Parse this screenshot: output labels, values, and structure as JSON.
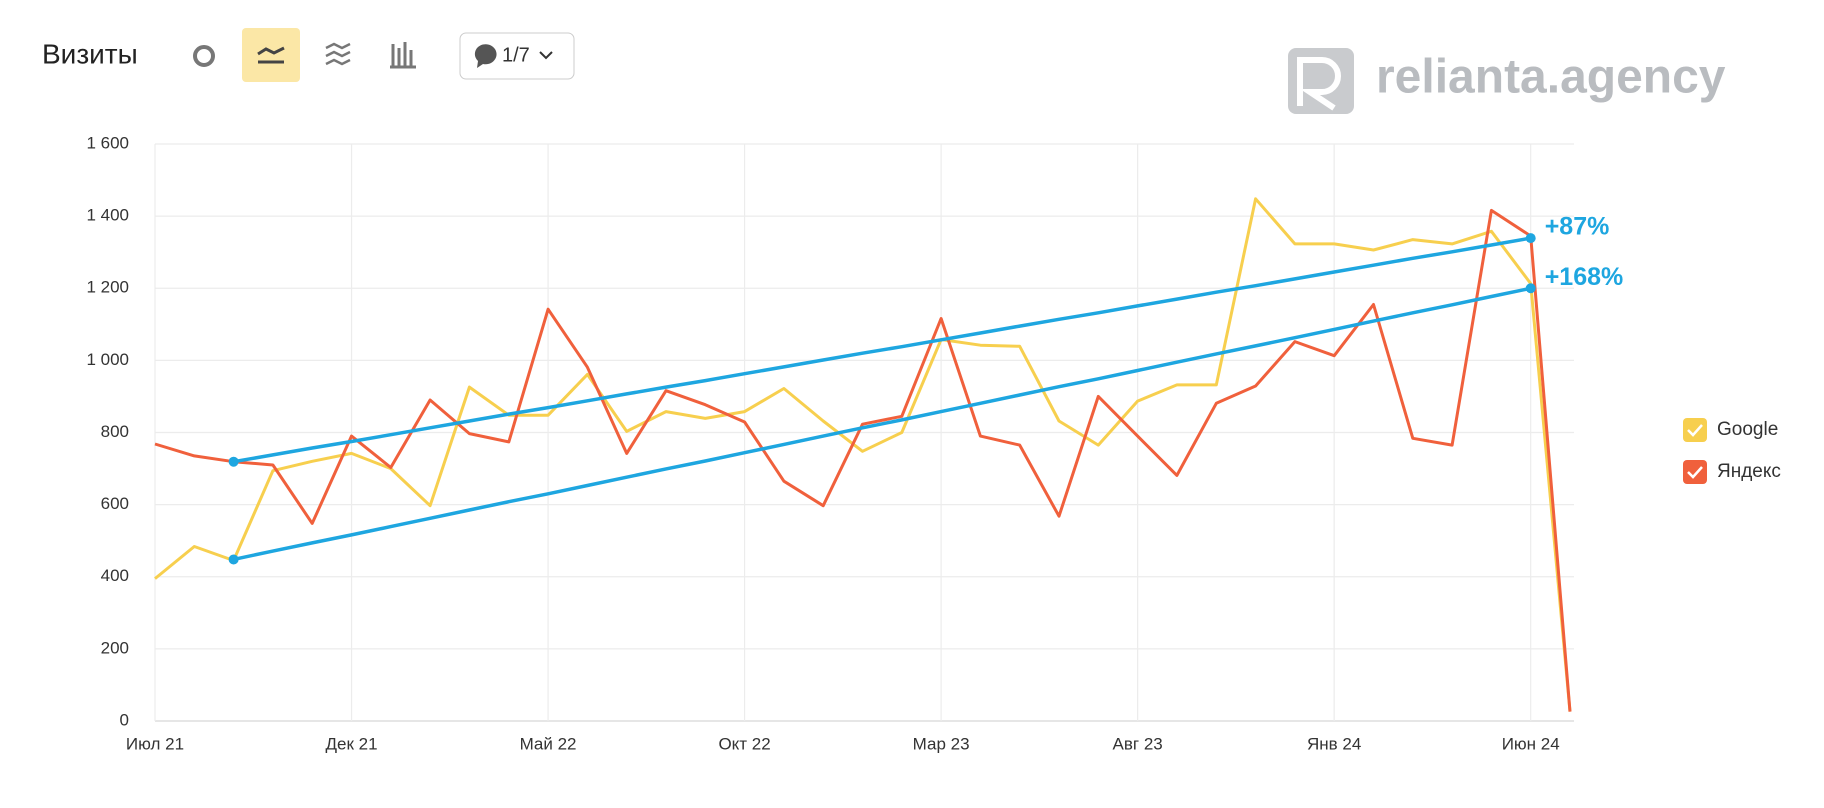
{
  "header": {
    "title": "Визиты",
    "comments": "1/7"
  },
  "logo": "relianta.agency",
  "chart_data": {
    "type": "line",
    "categories": [
      "Июл 21",
      null,
      null,
      null,
      null,
      "Дек 21",
      null,
      null,
      null,
      null,
      "Май 22",
      null,
      null,
      null,
      null,
      "Окт 22",
      null,
      null,
      null,
      null,
      "Мар 23",
      null,
      null,
      null,
      null,
      "Авг 23",
      null,
      null,
      null,
      null,
      "Янв 24",
      null,
      null,
      null,
      null,
      "Июн 24",
      null
    ],
    "series": [
      {
        "name": "Google",
        "color": "#f7cf4e",
        "values": [
          395,
          484,
          445,
          694,
          720,
          742,
          700,
          597,
          926,
          848,
          848,
          961,
          803,
          858,
          839,
          858,
          922,
          832,
          748,
          800,
          1058,
          1042,
          1039,
          832,
          765,
          887,
          932,
          932,
          1448,
          1323,
          1323,
          1306,
          1335,
          1323,
          1358,
          1213,
          26
        ]
      },
      {
        "name": "Яндекс",
        "color": "#f0603c",
        "values": [
          768,
          735,
          719,
          710,
          548,
          790,
          703,
          890,
          797,
          774,
          1142,
          981,
          742,
          916,
          877,
          829,
          665,
          597,
          823,
          845,
          1116,
          790,
          765,
          568,
          900,
          790,
          681,
          881,
          929,
          1052,
          1013,
          1155,
          784,
          765,
          1416,
          1345,
          26
        ]
      }
    ],
    "trend_lines": [
      {
        "label": "+87%",
        "color": "#1ea6e0",
        "values": [
          null,
          null,
          719,
          738,
          757,
          775,
          794,
          813,
          832,
          851,
          869,
          888,
          907,
          926,
          944,
          963,
          982,
          1001,
          1020,
          1038,
          1057,
          1076,
          1095,
          1114,
          1132,
          1151,
          1170,
          1189,
          1207,
          1226,
          1245,
          1264,
          1283,
          1301,
          1320,
          1339,
          null
        ]
      },
      {
        "label": "+168%",
        "color": "#1ea6e0",
        "values": [
          null,
          null,
          448,
          471,
          494,
          516,
          539,
          562,
          585,
          608,
          630,
          653,
          676,
          699,
          721,
          744,
          767,
          790,
          813,
          835,
          858,
          881,
          904,
          927,
          949,
          972,
          995,
          1018,
          1040,
          1063,
          1086,
          1109,
          1132,
          1154,
          1177,
          1200,
          null
        ]
      }
    ],
    "ylim": [
      0,
      1600
    ],
    "yticks": [
      0,
      200,
      400,
      600,
      800,
      {
        "value": 1000,
        "label": "1 000"
      },
      {
        "value": 1200,
        "label": "1 200"
      },
      {
        "value": 1400,
        "label": "1 400"
      },
      {
        "value": 1600,
        "label": "1 600"
      }
    ],
    "grid": true,
    "legend": "right"
  }
}
